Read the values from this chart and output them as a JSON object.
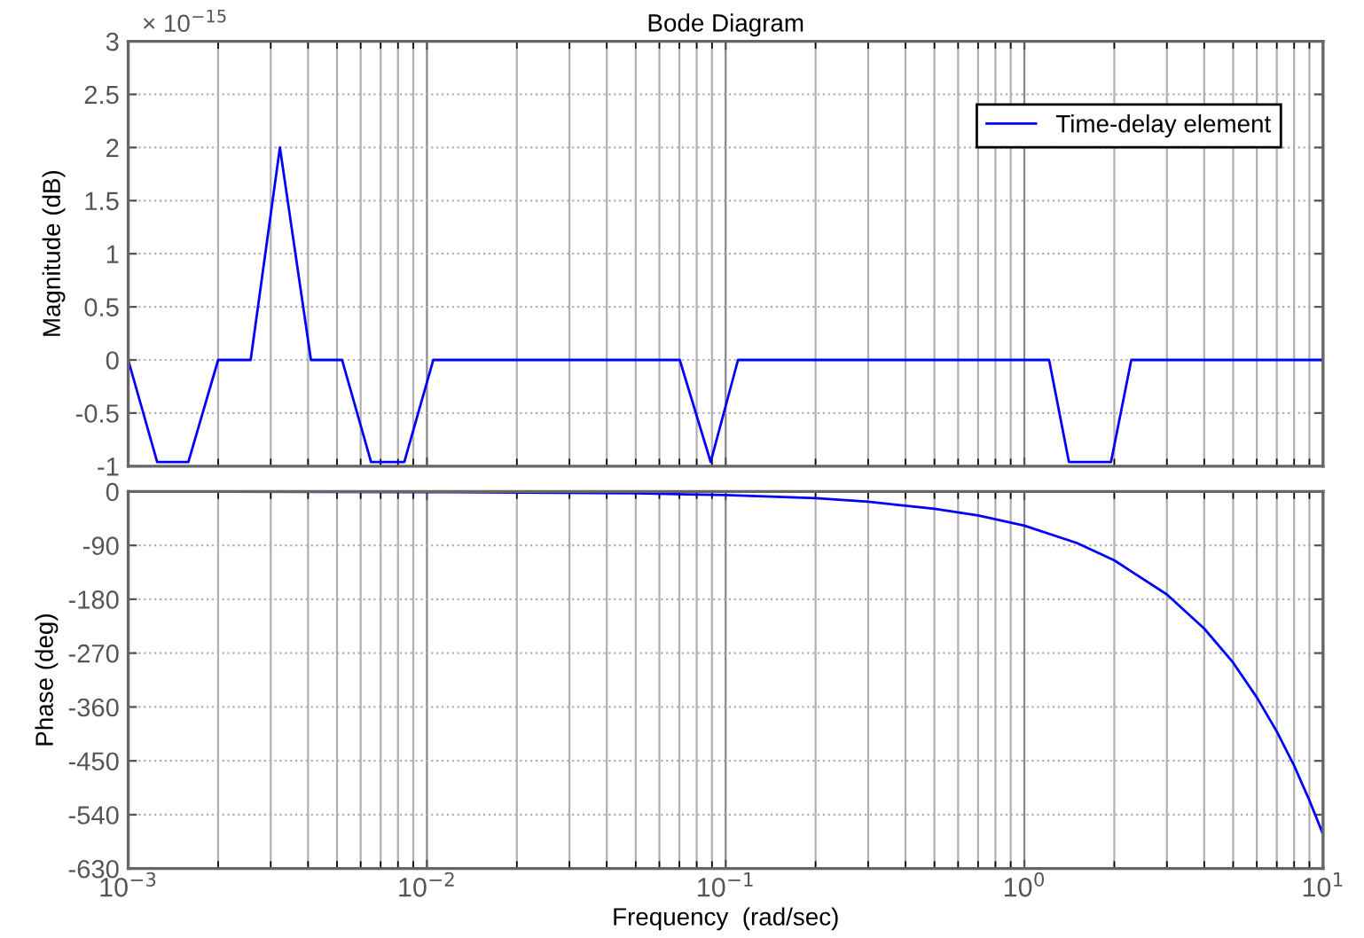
{
  "chart_data": [
    {
      "type": "line",
      "title": "Bode Diagram",
      "ylabel": "Magnitude (dB)",
      "annotations": [
        "× 10$^{−15}$"
      ],
      "x": [
        0.001,
        0.00125,
        0.00159,
        0.002,
        0.00257,
        0.00322,
        0.00409,
        0.0052,
        0.0065,
        0.0084,
        0.0105,
        0.0702,
        0.0891,
        0.11,
        1.21,
        1.41,
        1.95,
        2.28,
        10
      ],
      "series": [
        {
          "name": "Time-delay element",
          "color": "#0000ff",
          "values": [
            0,
            -0.96,
            -0.96,
            0,
            0,
            2,
            0,
            0,
            -0.96,
            -0.96,
            0,
            0,
            -0.96,
            0,
            0,
            -0.96,
            -0.96,
            0,
            0
          ]
        }
      ],
      "log": "x",
      "xlim": [
        0.001,
        10
      ],
      "ylim": [
        -1,
        3
      ],
      "yticks": [
        -1,
        -0.5,
        0,
        0.5,
        1,
        1.5,
        2,
        2.5,
        3
      ],
      "grid": true,
      "legend": "top right",
      "tick_labels": "y",
      "line_style": "solid",
      "marker": "none"
    },
    {
      "type": "line",
      "xlabel": "Frequency  (rad/sec)",
      "ylabel": "Phase (deg)",
      "x": [
        0.001,
        0.01,
        0.05,
        0.1,
        0.2,
        0.3,
        0.5,
        0.7,
        1,
        1.5,
        2,
        3,
        4,
        5,
        6,
        7,
        8,
        9,
        10
      ],
      "series": [
        {
          "color": "#0000ff",
          "values": [
            0,
            -1,
            -3,
            -6,
            -11,
            -17,
            -29,
            -40,
            -57,
            -86,
            -115,
            -172,
            -229,
            -286,
            -344,
            -401,
            -458,
            -516,
            -573
          ]
        }
      ],
      "log": "x",
      "xlim": [
        0.001,
        10
      ],
      "xticks": [
        {
          "value": 0.001,
          "label": "10$^{−3}$"
        },
        {
          "value": 0.01,
          "label": "10$^{−2}$"
        },
        {
          "value": 0.1,
          "label": "10$^{−1}$"
        },
        {
          "value": 1,
          "label": "10$^{0}$"
        },
        {
          "value": 10,
          "label": "10$^{1}$"
        }
      ],
      "ylim": [
        -630,
        0
      ],
      "yticks": [
        -630,
        -540,
        -450,
        -360,
        -270,
        -180,
        -90,
        0
      ],
      "grid": true,
      "line_style": "solid",
      "marker": "none"
    }
  ]
}
